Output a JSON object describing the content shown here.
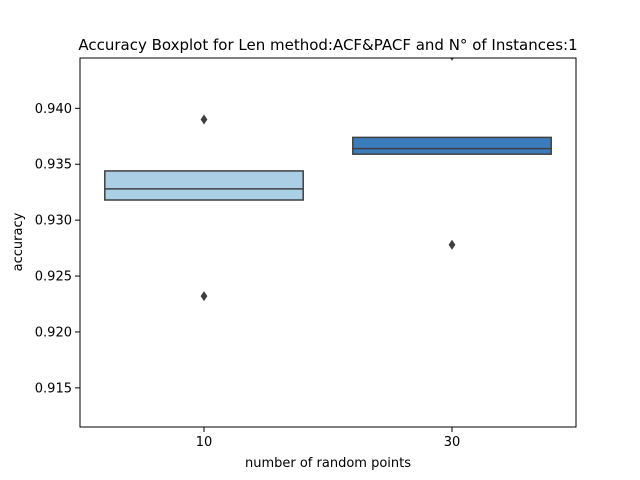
{
  "chart_data": {
    "type": "boxplot",
    "title": "Accuracy Boxplot for Len method:ACF&PACF and N° of Instances:1",
    "xlabel": "number of random points",
    "ylabel": "accuracy",
    "categories": [
      "10",
      "30"
    ],
    "ylim": [
      0.9115,
      0.9445
    ],
    "yticks": [
      0.915,
      0.92,
      0.925,
      0.93,
      0.935,
      0.94
    ],
    "ytick_labels": [
      "0.915",
      "0.920",
      "0.925",
      "0.930",
      "0.935",
      "0.940"
    ],
    "grid": false,
    "boxes": [
      {
        "category": "10",
        "q1": 0.9318,
        "median": 0.9328,
        "q3": 0.9344,
        "whisker_low": 0.9318,
        "whisker_high": 0.9344,
        "outliers": [
          0.939,
          0.9232
        ],
        "color": "#abd0e6"
      },
      {
        "category": "30",
        "q1": 0.9359,
        "median": 0.9364,
        "q3": 0.9374,
        "whisker_low": 0.9359,
        "whisker_high": 0.9374,
        "outliers": [
          0.9447,
          0.9278
        ],
        "color": "#3b7dbc"
      }
    ],
    "colors": {
      "line": "#3f3f3f",
      "axis": "#000000",
      "outlier": "#3f3f3f"
    }
  }
}
